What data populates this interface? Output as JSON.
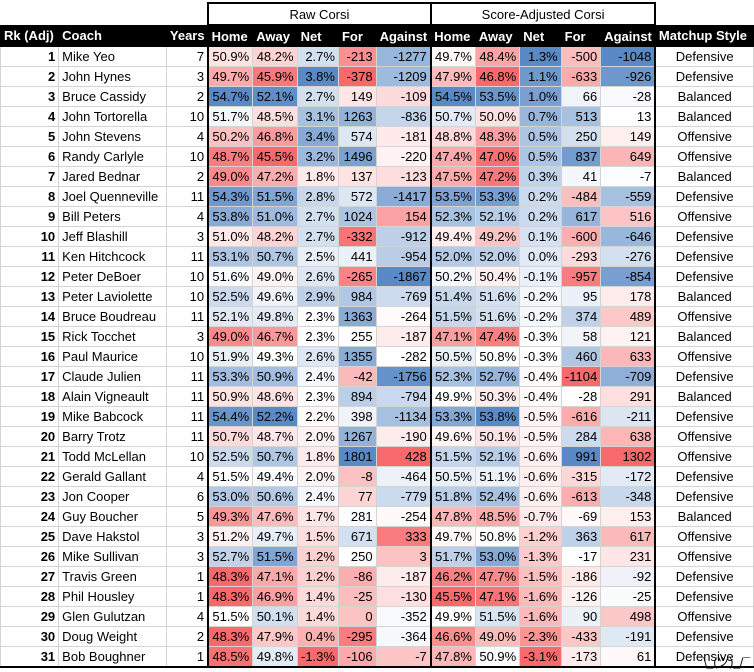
{
  "group_headers": {
    "raw": "Raw Corsi",
    "adj": "Score-Adjusted Corsi"
  },
  "headers": [
    "Rk (Adj)",
    "Coach",
    "Years",
    "Home",
    "Away",
    "Net",
    "For",
    "Against",
    "Home",
    "Away",
    "Net",
    "For",
    "Against",
    "Matchup Style"
  ],
  "colors": {
    "red": "#f8696b",
    "blue": "#5a8ac6",
    "white": "#ffffff"
  },
  "rows": [
    {
      "rk": "1",
      "coach": "Mike Yeo",
      "years": "7",
      "rh": "50.9%",
      "ra": "48.2%",
      "rn": "2.7%",
      "rf": "-213",
      "rg": "-1277",
      "ah": "49.7%",
      "aa": "48.4%",
      "an": "1.3%",
      "af": "-500",
      "ag": "-1048",
      "style": "Defensive"
    },
    {
      "rk": "2",
      "coach": "John Hynes",
      "years": "3",
      "rh": "49.7%",
      "ra": "45.9%",
      "rn": "3.8%",
      "rf": "-378",
      "rg": "-1209",
      "ah": "47.9%",
      "aa": "46.8%",
      "an": "1.1%",
      "af": "-633",
      "ag": "-926",
      "style": "Defensive"
    },
    {
      "rk": "3",
      "coach": "Bruce Cassidy",
      "years": "2",
      "rh": "54.7%",
      "ra": "52.1%",
      "rn": "2.7%",
      "rf": "149",
      "rg": "-109",
      "ah": "54.5%",
      "aa": "53.5%",
      "an": "1.0%",
      "af": "66",
      "ag": "-28",
      "style": "Balanced"
    },
    {
      "rk": "4",
      "coach": "John Tortorella",
      "years": "10",
      "rh": "51.7%",
      "ra": "48.5%",
      "rn": "3.1%",
      "rf": "1263",
      "rg": "-836",
      "ah": "50.7%",
      "aa": "50.0%",
      "an": "0.7%",
      "af": "513",
      "ag": "13",
      "style": "Balanced"
    },
    {
      "rk": "5",
      "coach": "John Stevens",
      "years": "4",
      "rh": "50.2%",
      "ra": "46.8%",
      "rn": "3.4%",
      "rf": "574",
      "rg": "-181",
      "ah": "48.8%",
      "aa": "48.3%",
      "an": "0.5%",
      "af": "250",
      "ag": "149",
      "style": "Offensive"
    },
    {
      "rk": "6",
      "coach": "Randy Carlyle",
      "years": "10",
      "rh": "48.7%",
      "ra": "45.5%",
      "rn": "3.2%",
      "rf": "1496",
      "rg": "-220",
      "ah": "47.4%",
      "aa": "47.0%",
      "an": "0.5%",
      "af": "837",
      "ag": "649",
      "style": "Offensive"
    },
    {
      "rk": "7",
      "coach": "Jared Bednar",
      "years": "2",
      "rh": "49.0%",
      "ra": "47.2%",
      "rn": "1.8%",
      "rf": "137",
      "rg": "-123",
      "ah": "47.5%",
      "aa": "47.2%",
      "an": "0.3%",
      "af": "41",
      "ag": "-7",
      "style": "Balanced"
    },
    {
      "rk": "8",
      "coach": "Joel Quenneville",
      "years": "11",
      "rh": "54.3%",
      "ra": "51.5%",
      "rn": "2.8%",
      "rf": "572",
      "rg": "-1417",
      "ah": "53.5%",
      "aa": "53.3%",
      "an": "0.2%",
      "af": "-484",
      "ag": "-559",
      "style": "Defensive"
    },
    {
      "rk": "9",
      "coach": "Bill Peters",
      "years": "4",
      "rh": "53.8%",
      "ra": "51.0%",
      "rn": "2.7%",
      "rf": "1024",
      "rg": "154",
      "ah": "52.3%",
      "aa": "52.1%",
      "an": "0.2%",
      "af": "617",
      "ag": "516",
      "style": "Offensive"
    },
    {
      "rk": "10",
      "coach": "Jeff Blashill",
      "years": "3",
      "rh": "51.0%",
      "ra": "48.2%",
      "rn": "2.7%",
      "rf": "-332",
      "rg": "-912",
      "ah": "49.4%",
      "aa": "49.2%",
      "an": "0.1%",
      "af": "-600",
      "ag": "-646",
      "style": "Defensive"
    },
    {
      "rk": "11",
      "coach": "Ken Hitchcock",
      "years": "11",
      "rh": "53.1%",
      "ra": "50.7%",
      "rn": "2.5%",
      "rf": "441",
      "rg": "-954",
      "ah": "52.0%",
      "aa": "52.0%",
      "an": "0.0%",
      "af": "-293",
      "ag": "-276",
      "style": "Defensive"
    },
    {
      "rk": "12",
      "coach": "Peter DeBoer",
      "years": "10",
      "rh": "51.6%",
      "ra": "49.0%",
      "rn": "2.6%",
      "rf": "-265",
      "rg": "-1867",
      "ah": "50.2%",
      "aa": "50.4%",
      "an": "-0.1%",
      "af": "-957",
      "ag": "-854",
      "style": "Defensive"
    },
    {
      "rk": "13",
      "coach": "Peter Laviolette",
      "years": "10",
      "rh": "52.5%",
      "ra": "49.6%",
      "rn": "2.9%",
      "rf": "984",
      "rg": "-769",
      "ah": "51.4%",
      "aa": "51.6%",
      "an": "-0.2%",
      "af": "95",
      "ag": "178",
      "style": "Balanced"
    },
    {
      "rk": "14",
      "coach": "Bruce Boudreau",
      "years": "11",
      "rh": "52.1%",
      "ra": "49.8%",
      "rn": "2.3%",
      "rf": "1363",
      "rg": "-264",
      "ah": "51.5%",
      "aa": "51.6%",
      "an": "-0.2%",
      "af": "374",
      "ag": "489",
      "style": "Offensive"
    },
    {
      "rk": "15",
      "coach": "Rick Tocchet",
      "years": "3",
      "rh": "49.0%",
      "ra": "46.7%",
      "rn": "2.3%",
      "rf": "255",
      "rg": "-187",
      "ah": "47.1%",
      "aa": "47.4%",
      "an": "-0.3%",
      "af": "58",
      "ag": "121",
      "style": "Balanced"
    },
    {
      "rk": "16",
      "coach": "Paul Maurice",
      "years": "10",
      "rh": "51.9%",
      "ra": "49.3%",
      "rn": "2.6%",
      "rf": "1355",
      "rg": "-282",
      "ah": "50.5%",
      "aa": "50.8%",
      "an": "-0.3%",
      "af": "460",
      "ag": "633",
      "style": "Offensive"
    },
    {
      "rk": "17",
      "coach": "Claude Julien",
      "years": "11",
      "rh": "53.3%",
      "ra": "50.9%",
      "rn": "2.4%",
      "rf": "-42",
      "rg": "-1756",
      "ah": "52.3%",
      "aa": "52.7%",
      "an": "-0.4%",
      "af": "-1104",
      "ag": "-709",
      "style": "Defensive"
    },
    {
      "rk": "18",
      "coach": "Alain Vigneault",
      "years": "11",
      "rh": "50.9%",
      "ra": "48.6%",
      "rn": "2.3%",
      "rf": "894",
      "rg": "-794",
      "ah": "49.9%",
      "aa": "50.3%",
      "an": "-0.4%",
      "af": "-28",
      "ag": "291",
      "style": "Balanced"
    },
    {
      "rk": "19",
      "coach": "Mike Babcock",
      "years": "11",
      "rh": "54.4%",
      "ra": "52.2%",
      "rn": "2.2%",
      "rf": "398",
      "rg": "-1134",
      "ah": "53.3%",
      "aa": "53.8%",
      "an": "-0.5%",
      "af": "-616",
      "ag": "-211",
      "style": "Defensive"
    },
    {
      "rk": "20",
      "coach": "Barry Trotz",
      "years": "11",
      "rh": "50.7%",
      "ra": "48.7%",
      "rn": "2.0%",
      "rf": "1267",
      "rg": "-190",
      "ah": "49.6%",
      "aa": "50.1%",
      "an": "-0.5%",
      "af": "284",
      "ag": "638",
      "style": "Offensive"
    },
    {
      "rk": "21",
      "coach": "Todd McLellan",
      "years": "10",
      "rh": "52.5%",
      "ra": "50.7%",
      "rn": "1.8%",
      "rf": "1801",
      "rg": "428",
      "ah": "51.5%",
      "aa": "52.1%",
      "an": "-0.6%",
      "af": "991",
      "ag": "1302",
      "style": "Offensive"
    },
    {
      "rk": "22",
      "coach": "Gerald Gallant",
      "years": "4",
      "rh": "51.5%",
      "ra": "49.4%",
      "rn": "2.0%",
      "rf": "-8",
      "rg": "-464",
      "ah": "50.5%",
      "aa": "51.1%",
      "an": "-0.6%",
      "af": "-315",
      "ag": "-172",
      "style": "Defensive"
    },
    {
      "rk": "23",
      "coach": "Jon Cooper",
      "years": "6",
      "rh": "53.0%",
      "ra": "50.6%",
      "rn": "2.4%",
      "rf": "77",
      "rg": "-779",
      "ah": "51.8%",
      "aa": "52.4%",
      "an": "-0.6%",
      "af": "-613",
      "ag": "-348",
      "style": "Defensive"
    },
    {
      "rk": "24",
      "coach": "Guy Boucher",
      "years": "5",
      "rh": "49.3%",
      "ra": "47.6%",
      "rn": "1.7%",
      "rf": "281",
      "rg": "-254",
      "ah": "47.8%",
      "aa": "48.5%",
      "an": "-0.7%",
      "af": "-69",
      "ag": "153",
      "style": "Balanced"
    },
    {
      "rk": "25",
      "coach": "Dave Hakstol",
      "years": "3",
      "rh": "51.2%",
      "ra": "49.7%",
      "rn": "1.5%",
      "rf": "671",
      "rg": "333",
      "ah": "49.7%",
      "aa": "50.8%",
      "an": "-1.2%",
      "af": "363",
      "ag": "617",
      "style": "Offensive"
    },
    {
      "rk": "26",
      "coach": "Mike Sullivan",
      "years": "3",
      "rh": "52.7%",
      "ra": "51.5%",
      "rn": "1.2%",
      "rf": "250",
      "rg": "3",
      "ah": "51.7%",
      "aa": "53.0%",
      "an": "-1.3%",
      "af": "-17",
      "ag": "231",
      "style": "Offensive"
    },
    {
      "rk": "27",
      "coach": "Travis Green",
      "years": "1",
      "rh": "48.3%",
      "ra": "47.1%",
      "rn": "1.2%",
      "rf": "-86",
      "rg": "-187",
      "ah": "46.2%",
      "aa": "47.7%",
      "an": "-1.5%",
      "af": "-186",
      "ag": "-92",
      "style": "Defensive"
    },
    {
      "rk": "28",
      "coach": "Phil Housley",
      "years": "1",
      "rh": "48.3%",
      "ra": "46.9%",
      "rn": "1.4%",
      "rf": "-25",
      "rg": "-130",
      "ah": "45.5%",
      "aa": "47.1%",
      "an": "-1.6%",
      "af": "-126",
      "ag": "-25",
      "style": "Defensive"
    },
    {
      "rk": "29",
      "coach": "Glen Gulutzan",
      "years": "4",
      "rh": "51.5%",
      "ra": "50.1%",
      "rn": "1.4%",
      "rf": "0",
      "rg": "-352",
      "ah": "49.9%",
      "aa": "51.5%",
      "an": "-1.6%",
      "af": "90",
      "ag": "498",
      "style": "Offensive"
    },
    {
      "rk": "30",
      "coach": "Doug Weight",
      "years": "2",
      "rh": "48.3%",
      "ra": "47.9%",
      "rn": "0.4%",
      "rf": "-295",
      "rg": "-364",
      "ah": "46.6%",
      "aa": "49.0%",
      "an": "-2.3%",
      "af": "-433",
      "ag": "-191",
      "style": "Defensive"
    },
    {
      "rk": "31",
      "coach": "Bob Boughner",
      "years": "1",
      "rh": "48.5%",
      "ra": "49.8%",
      "rn": "-1.3%",
      "rf": "-106",
      "rg": "-7",
      "ah": "47.8%",
      "aa": "50.9%",
      "an": "-3.1%",
      "af": "-173",
      "ag": "61",
      "style": "Defensive"
    }
  ],
  "shrug": "¯\\_(ツ)_/¯"
}
